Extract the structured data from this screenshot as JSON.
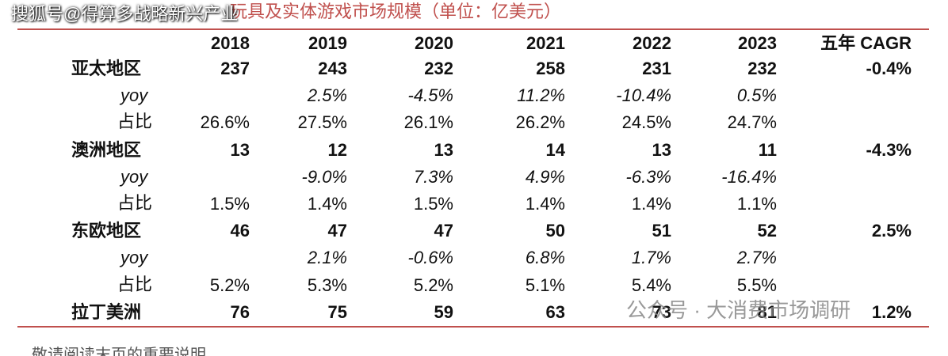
{
  "header": {
    "title": "玩具及实体游戏市场规模（单位：亿美元）",
    "watermark": "搜狐号@得算多战略新兴产业"
  },
  "table": {
    "columns": [
      "2018",
      "2019",
      "2020",
      "2021",
      "2022",
      "2023",
      "五年 CAGR"
    ],
    "rows": [
      [
        "亚太地区",
        "237",
        "243",
        "232",
        "258",
        "231",
        "232",
        "-0.4%"
      ],
      [
        "yoy",
        null,
        "2.5%",
        "-4.5%",
        "11.2%",
        "-10.4%",
        "0.5%",
        null
      ],
      [
        "占比",
        "26.6%",
        "27.5%",
        "26.1%",
        "26.2%",
        "24.5%",
        "24.7%",
        null
      ],
      [
        "澳洲地区",
        "13",
        "12",
        "13",
        "14",
        "13",
        "11",
        "-4.3%"
      ],
      [
        "yoy",
        null,
        "-9.0%",
        "7.3%",
        "4.9%",
        "-6.3%",
        "-16.4%",
        null
      ],
      [
        "占比",
        "1.5%",
        "1.4%",
        "1.5%",
        "1.4%",
        "1.4%",
        "1.1%",
        null
      ],
      [
        "东欧地区",
        "46",
        "47",
        "47",
        "50",
        "51",
        "52",
        "2.5%"
      ],
      [
        "yoy",
        null,
        "2.1%",
        "-0.6%",
        "6.8%",
        "1.7%",
        "2.7%",
        null
      ],
      [
        "占比",
        "5.2%",
        "5.3%",
        "5.2%",
        "5.1%",
        "5.4%",
        "5.5%",
        null
      ],
      [
        "拉丁美洲",
        "76",
        "75",
        "59",
        "63",
        "73",
        "81",
        "1.2%"
      ]
    ]
  },
  "footer": {
    "note": "敬请阅读末页的重要说明",
    "watermark": "公众号 · 大消费市场调研"
  }
}
